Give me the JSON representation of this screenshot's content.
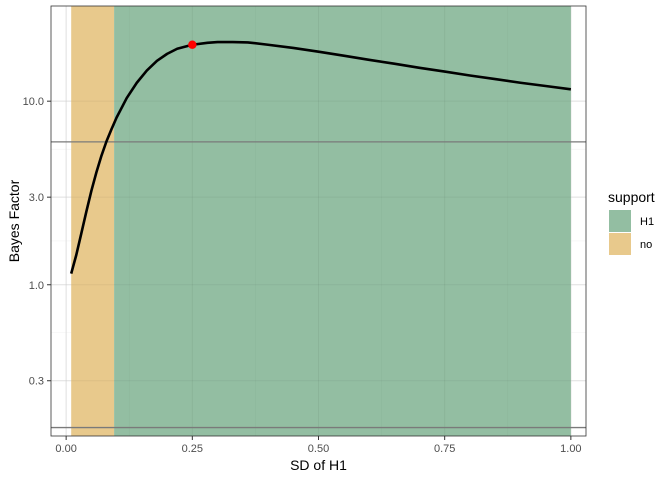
{
  "chart_data": {
    "type": "line",
    "xlabel": "SD of H1",
    "ylabel": "Bayes Factor",
    "x_ticks": [
      0.0,
      0.25,
      0.5,
      0.75,
      1.0
    ],
    "x_tick_labels": [
      "0.00",
      "0.25",
      "0.50",
      "0.75",
      "1.00"
    ],
    "y_scale": "log10",
    "y_ticks": [
      0.3,
      1.0,
      3.0,
      10.0
    ],
    "y_tick_labels": [
      "0.3",
      "1.0",
      "3.0",
      "10.0"
    ],
    "xlim": [
      -0.03,
      1.03
    ],
    "ylim": [
      0.15,
      33
    ],
    "grid": true,
    "legend": {
      "title": "support",
      "position": "right",
      "entries": [
        {
          "label": "H1",
          "color": "#93BEA2"
        },
        {
          "label": "no",
          "color": "#E8C98C"
        }
      ]
    },
    "regions": [
      {
        "label": "no",
        "x_start": 0.01,
        "x_end": 0.095,
        "color": "#E8C98C"
      },
      {
        "label": "H1",
        "x_start": 0.095,
        "x_end": 1.0,
        "color": "#93BEA2"
      }
    ],
    "hlines": [
      0.1667,
      6.0
    ],
    "hline_color": "#7a7a7a",
    "series": [
      {
        "color": "#000000",
        "x": [
          0.01,
          0.02,
          0.03,
          0.04,
          0.05,
          0.06,
          0.07,
          0.08,
          0.09,
          0.1,
          0.12,
          0.14,
          0.16,
          0.18,
          0.2,
          0.22,
          0.25,
          0.28,
          0.3,
          0.33,
          0.36,
          0.4,
          0.45,
          0.5,
          0.55,
          0.6,
          0.65,
          0.7,
          0.75,
          0.8,
          0.85,
          0.9,
          0.95,
          1.0
        ],
        "y": [
          1.15,
          1.45,
          1.9,
          2.5,
          3.25,
          4.1,
          5.05,
          6.05,
          7.05,
          8.15,
          10.4,
          12.6,
          14.7,
          16.6,
          18.1,
          19.3,
          20.3,
          20.8,
          21.0,
          21.0,
          20.9,
          20.3,
          19.5,
          18.6,
          17.7,
          16.8,
          16.0,
          15.2,
          14.5,
          13.8,
          13.2,
          12.6,
          12.1,
          11.6
        ]
      }
    ],
    "highlight_point": {
      "x": 0.25,
      "y": 20.3,
      "color": "#FF0000"
    }
  }
}
